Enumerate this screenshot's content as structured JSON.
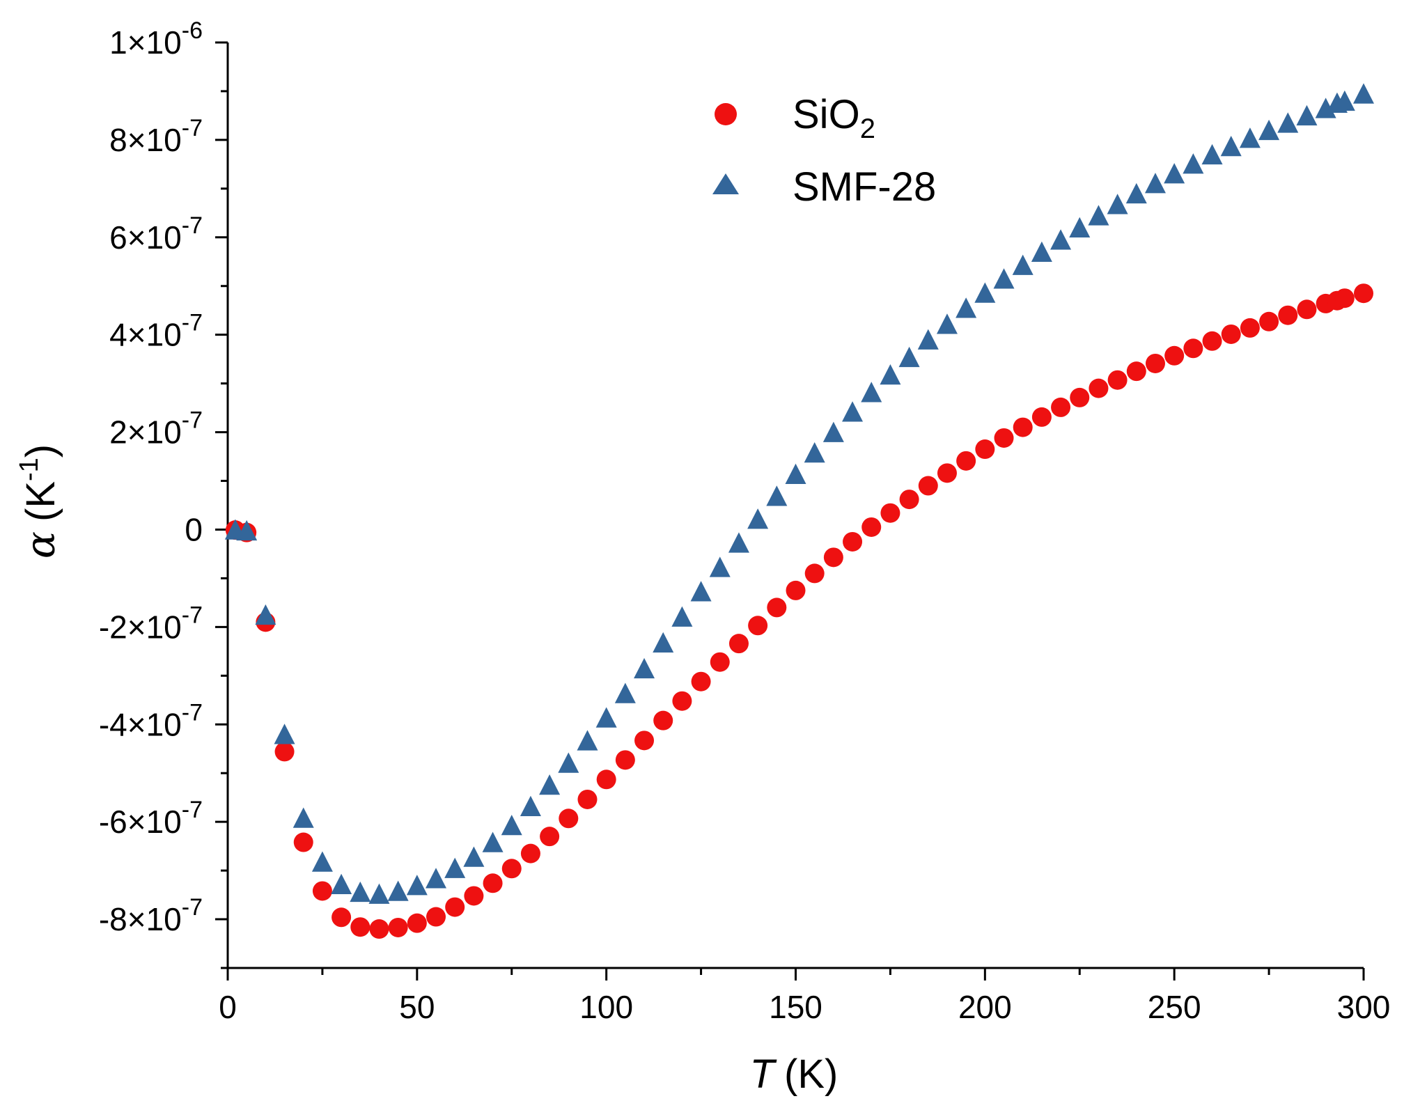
{
  "chart_data": {
    "type": "scatter",
    "title": "",
    "xlabel": {
      "symbol": "T",
      "unit": "(K)"
    },
    "ylabel": {
      "symbol": "α",
      "unit": "(K",
      "sup": "-1",
      "close": ")"
    },
    "xlim": [
      0,
      300
    ],
    "ylim": [
      -9e-07,
      1e-06
    ],
    "x_ticks": [
      {
        "value": 0,
        "label": "0"
      },
      {
        "value": 50,
        "label": "50"
      },
      {
        "value": 100,
        "label": "100"
      },
      {
        "value": 150,
        "label": "150"
      },
      {
        "value": 200,
        "label": "200"
      },
      {
        "value": 250,
        "label": "250"
      },
      {
        "value": 300,
        "label": "300"
      }
    ],
    "y_ticks": [
      {
        "value": 1e-06,
        "mant": "1×10",
        "exp": "-6"
      },
      {
        "value": 8e-07,
        "mant": "8×10",
        "exp": "-7"
      },
      {
        "value": 6e-07,
        "mant": "6×10",
        "exp": "-7"
      },
      {
        "value": 4e-07,
        "mant": "4×10",
        "exp": "-7"
      },
      {
        "value": 2e-07,
        "mant": "2×10",
        "exp": "-7"
      },
      {
        "value": 0,
        "mant": "0",
        "exp": ""
      },
      {
        "value": -2e-07,
        "mant": "-2×10",
        "exp": "-7"
      },
      {
        "value": -4e-07,
        "mant": "-4×10",
        "exp": "-7"
      },
      {
        "value": -6e-07,
        "mant": "-6×10",
        "exp": "-7"
      },
      {
        "value": -8e-07,
        "mant": "-8×10",
        "exp": "-7"
      }
    ],
    "grid": false,
    "legend_position": "top-center",
    "series": [
      {
        "name": "SiO2",
        "legend_main": "SiO",
        "legend_sub": "2",
        "marker": "circle",
        "color": "#ee1111",
        "x": [
          2,
          5,
          10,
          15,
          20,
          25,
          30,
          35,
          40,
          45,
          50,
          55,
          60,
          65,
          70,
          75,
          80,
          85,
          90,
          95,
          100,
          105,
          110,
          115,
          120,
          125,
          130,
          135,
          140,
          145,
          150,
          155,
          160,
          165,
          170,
          175,
          180,
          185,
          190,
          195,
          200,
          205,
          210,
          215,
          220,
          225,
          230,
          235,
          240,
          245,
          250,
          255,
          260,
          265,
          270,
          275,
          280,
          285,
          290,
          293,
          295,
          300
        ],
        "y": [
          -1e-09,
          -6e-09,
          -1.9e-07,
          -4.56e-07,
          -6.42e-07,
          -7.42e-07,
          -7.96e-07,
          -8.16e-07,
          -8.2e-07,
          -8.17e-07,
          -8.08e-07,
          -7.95e-07,
          -7.75e-07,
          -7.52e-07,
          -7.26e-07,
          -6.96e-07,
          -6.65e-07,
          -6.3e-07,
          -5.93e-07,
          -5.54e-07,
          -5.13e-07,
          -4.73e-07,
          -4.33e-07,
          -3.92e-07,
          -3.52e-07,
          -3.12e-07,
          -2.72e-07,
          -2.34e-07,
          -1.97e-07,
          -1.6e-07,
          -1.25e-07,
          -9e-08,
          -5.7e-08,
          -2.5e-08,
          5e-09,
          3.4e-08,
          6.2e-08,
          9e-08,
          1.16e-07,
          1.41e-07,
          1.65e-07,
          1.88e-07,
          2.1e-07,
          2.31e-07,
          2.51e-07,
          2.71e-07,
          2.9e-07,
          3.07e-07,
          3.25e-07,
          3.41e-07,
          3.57e-07,
          3.72e-07,
          3.87e-07,
          4.01e-07,
          4.14e-07,
          4.27e-07,
          4.4e-07,
          4.52e-07,
          4.64e-07,
          4.7e-07,
          4.75e-07,
          4.85e-07
        ]
      },
      {
        "name": "SMF-28",
        "legend_main": "SMF-28",
        "legend_sub": "",
        "marker": "triangle",
        "color": "#33669a",
        "x": [
          2,
          5,
          10,
          15,
          20,
          25,
          30,
          35,
          40,
          45,
          50,
          55,
          60,
          65,
          70,
          75,
          80,
          85,
          90,
          95,
          100,
          105,
          110,
          115,
          120,
          125,
          130,
          135,
          140,
          145,
          150,
          155,
          160,
          165,
          170,
          175,
          180,
          185,
          190,
          195,
          200,
          205,
          210,
          215,
          220,
          225,
          230,
          235,
          240,
          245,
          250,
          255,
          260,
          265,
          270,
          275,
          280,
          285,
          290,
          293,
          295,
          300
        ],
        "y": [
          0.0,
          -2e-09,
          -1.75e-07,
          -4.2e-07,
          -5.92e-07,
          -6.82e-07,
          -7.28e-07,
          -7.44e-07,
          -7.48e-07,
          -7.42e-07,
          -7.3e-07,
          -7.16e-07,
          -6.95e-07,
          -6.72e-07,
          -6.42e-07,
          -6.07e-07,
          -5.68e-07,
          -5.24e-07,
          -4.79e-07,
          -4.33e-07,
          -3.86e-07,
          -3.36e-07,
          -2.85e-07,
          -2.32e-07,
          -1.79e-07,
          -1.27e-07,
          -7.7e-08,
          -2.7e-08,
          2.2e-08,
          6.9e-08,
          1.14e-07,
          1.58e-07,
          2e-07,
          2.42e-07,
          2.82e-07,
          3.18e-07,
          3.54e-07,
          3.9e-07,
          4.22e-07,
          4.55e-07,
          4.86e-07,
          5.15e-07,
          5.43e-07,
          5.7e-07,
          5.95e-07,
          6.2e-07,
          6.45e-07,
          6.68e-07,
          6.9e-07,
          7.11e-07,
          7.31e-07,
          7.51e-07,
          7.7e-07,
          7.87e-07,
          8.04e-07,
          8.2e-07,
          8.35e-07,
          8.5e-07,
          8.65e-07,
          8.76e-07,
          8.8e-07,
          8.95e-07
        ]
      }
    ]
  }
}
